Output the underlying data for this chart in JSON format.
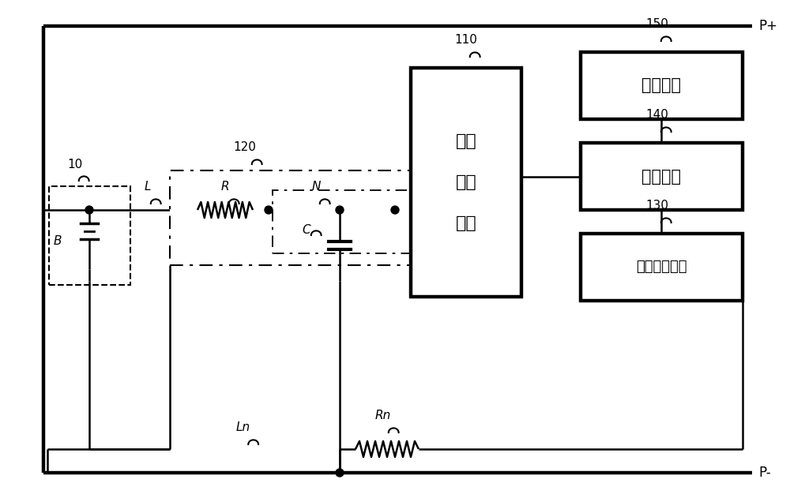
{
  "bg_color": "#ffffff",
  "lw": 1.8,
  "lw_thick": 3.2,
  "fig_w": 10.0,
  "fig_h": 6.31,
  "dpi": 100,
  "labels": {
    "P+": "P+",
    "P-": "P-",
    "label_10": "10",
    "label_120": "120",
    "label_110": "110",
    "label_150": "150",
    "label_140": "140",
    "label_130": "130",
    "label_L": "L",
    "label_R": "R",
    "label_N": "N",
    "label_C": "C",
    "label_Ln": "Ln",
    "label_Rn": "Rn",
    "label_B": "B",
    "box110_text": [
      "电压",
      "测量",
      "单元"
    ],
    "box150_text": "储存单元",
    "box140_text": "控制单元",
    "box130_text": "信号输出单元"
  }
}
